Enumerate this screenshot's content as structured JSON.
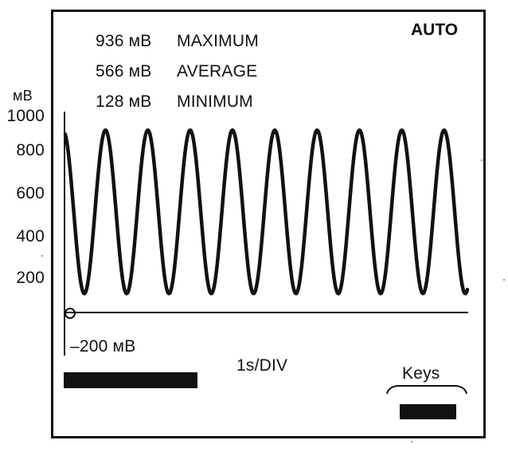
{
  "display": {
    "mode": "AUTO",
    "unit": "мВ",
    "stats": [
      {
        "value": "936 мВ",
        "label": "MAXIMUM"
      },
      {
        "value": "566 мВ",
        "label": "AVERAGE"
      },
      {
        "value": "128 мВ",
        "label": "MINIMUM"
      }
    ],
    "y_ticks": [
      "1000",
      "800",
      "600",
      "400",
      "200"
    ],
    "zero_marker": "0",
    "negative_label": "–200 мВ",
    "timebase": "1s/DIV",
    "keys_label": "Keys"
  },
  "colors": {
    "trace": "#111111",
    "background": "#ffffff"
  },
  "waveform": {
    "cycles_visible": 9.5,
    "max_mv": 936,
    "min_mv": 128
  }
}
